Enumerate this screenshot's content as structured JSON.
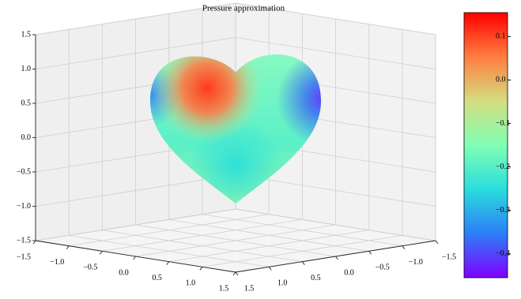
{
  "chart_data": {
    "type": "surface3d",
    "title": "Pressure approximation",
    "xlim": [
      -1.5,
      1.5
    ],
    "ylim": [
      -1.5,
      1.5
    ],
    "zlim": [
      -1.5,
      1.5
    ],
    "xticks": [
      {
        "value": -1.5,
        "label": "−1.5"
      },
      {
        "value": -1,
        "label": "−1.0"
      },
      {
        "value": -0.5,
        "label": "−0.5"
      },
      {
        "value": 0,
        "label": "0.0"
      },
      0.5,
      {
        "value": 1,
        "label": "1.0"
      },
      1.5
    ],
    "yticks": [
      {
        "value": -1.5,
        "label": "−1.5"
      },
      {
        "value": -1,
        "label": "−1.0"
      },
      {
        "value": -0.5,
        "label": "−0.5"
      },
      {
        "value": 0,
        "label": "0.0"
      },
      0.5,
      {
        "value": 1,
        "label": "1.0"
      },
      1.5
    ],
    "zticks": [
      {
        "value": -1.5,
        "label": "−1.5"
      },
      {
        "value": -1,
        "label": "−1.0"
      },
      {
        "value": -0.5,
        "label": "−0.5"
      },
      {
        "value": 0,
        "label": "0.0"
      },
      0.5,
      {
        "value": 1,
        "label": "1.0"
      },
      1.5
    ],
    "grid": true,
    "colormap": [
      "#8000ff",
      "#2c7ef7",
      "#2adddd",
      "#80ffb4",
      "#d4dd80",
      "#ff7e41",
      "#ff0000"
    ],
    "clim": [
      -0.455,
      0.155
    ],
    "cticks": [
      {
        "value": -0.4,
        "label": "−0.4"
      },
      {
        "value": -0.3,
        "label": "−0.3"
      },
      {
        "value": -0.2,
        "label": "−0.2"
      },
      {
        "value": -0.1,
        "label": "−0.1"
      },
      {
        "value": 0,
        "label": "0.0"
      },
      0.1
    ]
  }
}
